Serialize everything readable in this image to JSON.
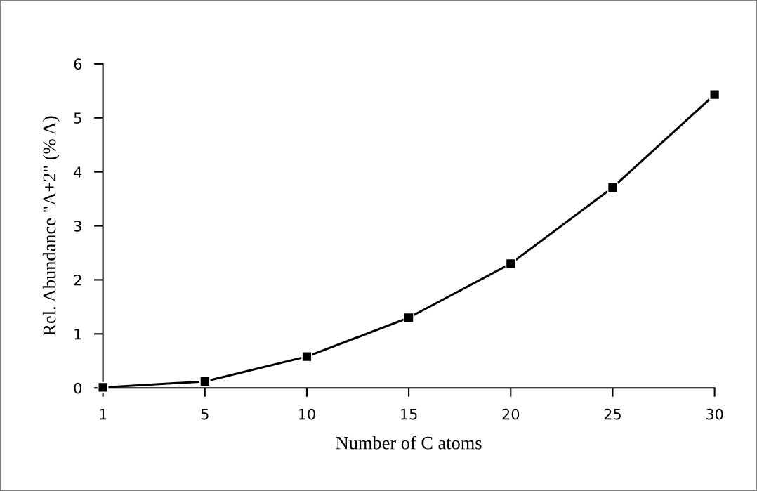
{
  "chart_data": {
    "type": "line",
    "xlabel": "Number of C atoms",
    "ylabel": "Rel. Abundance \"A+2\" (% A)",
    "categories": [
      "1",
      "5",
      "10",
      "15",
      "20",
      "25",
      "30"
    ],
    "series": [
      {
        "color": "#000000",
        "values": [
          0.01,
          0.12,
          0.58,
          1.3,
          2.3,
          3.71,
          5.43
        ]
      }
    ],
    "ylim": [
      0,
      6
    ],
    "yticks": [
      0,
      1,
      2,
      3,
      4,
      5,
      6
    ],
    "marker": "square",
    "line_style": "solid"
  }
}
